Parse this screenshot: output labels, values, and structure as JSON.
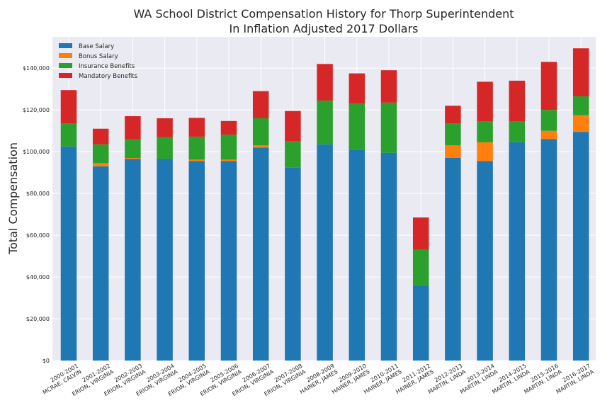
{
  "chart_data": {
    "type": "bar",
    "stacked": true,
    "title": [
      "WA School District Compensation History for Thorp Superintendent",
      "In Inflation Adjusted 2017 Dollars"
    ],
    "xlabel": "",
    "ylabel": "Total Compensation",
    "ylim": [
      0,
      155000
    ],
    "yticks": [
      0,
      20000,
      40000,
      60000,
      80000,
      100000,
      120000,
      140000
    ],
    "ytick_labels": [
      "$0",
      "$20,000",
      "$40,000",
      "$60,000",
      "$80,000",
      "$100,000",
      "$120,000",
      "$140,000"
    ],
    "grid": true,
    "legend_position": "top-left",
    "categories": [
      [
        "2000-2001",
        "MCRAE, CALVIN"
      ],
      [
        "2001-2002",
        "ERION, VIRGINIA"
      ],
      [
        "2002-2003",
        "ERION, VIRGINIA"
      ],
      [
        "2003-2004",
        "ERION, VIRGINIA"
      ],
      [
        "2004-2005",
        "ERION, VIRGINIA"
      ],
      [
        "2005-2006",
        "ERION, VIRGINIA"
      ],
      [
        "2006-2007",
        "ERION, VIRGINIA"
      ],
      [
        "2007-2008",
        "ERION, VIRGINIA"
      ],
      [
        "2008-2009",
        "HAINER, JAMES"
      ],
      [
        "2009-2010",
        "HAINER, JAMES"
      ],
      [
        "2010-2011",
        "HAINER, JAMES"
      ],
      [
        "2011-2012",
        "HAINER, JAMES"
      ],
      [
        "2012-2013",
        "MARTIN, LINDA"
      ],
      [
        "2013-2014",
        "MARTIN, LINDA"
      ],
      [
        "2014-2015",
        "MARTIN, LINDA"
      ],
      [
        "2015-2016",
        "MARTIN, LINDA"
      ],
      [
        "2016-2017",
        "MARTIN, LINDA"
      ]
    ],
    "series": [
      {
        "name": "Base Salary",
        "color": "#1f77b4",
        "values": [
          102500,
          93000,
          96500,
          96500,
          95500,
          95500,
          102000,
          92500,
          103500,
          101000,
          99500,
          36000,
          97000,
          95500,
          104500,
          106000,
          109500
        ]
      },
      {
        "name": "Bonus Salary",
        "color": "#ff7f0e",
        "values": [
          0,
          1500,
          500,
          0,
          700,
          700,
          1000,
          0,
          0,
          0,
          0,
          0,
          6000,
          9000,
          0,
          4000,
          8000
        ]
      },
      {
        "name": "Insurance Benefits",
        "color": "#2ca02c",
        "values": [
          11000,
          9000,
          9000,
          10500,
          11000,
          12000,
          13000,
          12500,
          21000,
          22000,
          24000,
          17000,
          10500,
          10000,
          10000,
          10000,
          9000
        ]
      },
      {
        "name": "Mandatory Benefits",
        "color": "#d62728",
        "values": [
          16000,
          7500,
          11000,
          9000,
          9000,
          6500,
          13000,
          14500,
          17500,
          14500,
          15500,
          15500,
          8500,
          19000,
          19500,
          23000,
          23000
        ]
      }
    ]
  }
}
